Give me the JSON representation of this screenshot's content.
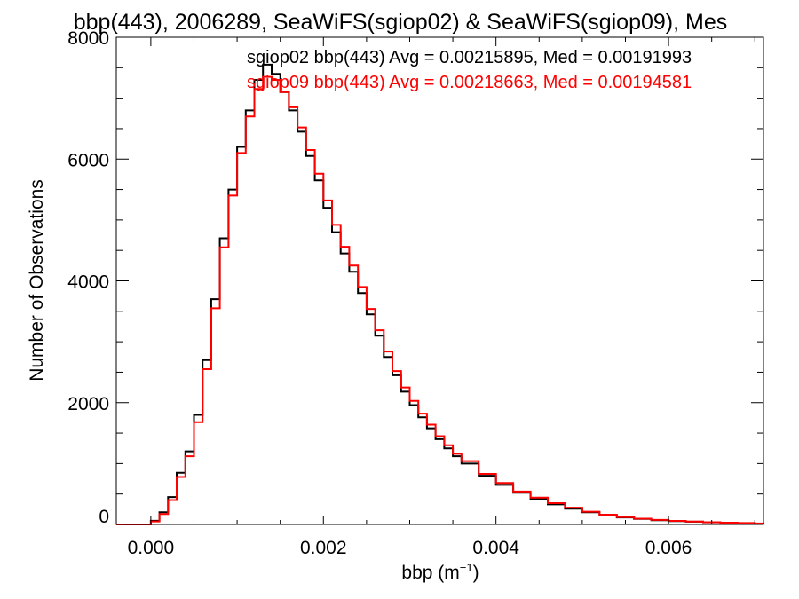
{
  "chart_data": {
    "type": "line",
    "title": "bbp(443), 2006289, SeaWiFS(sgiop02) & SeaWiFS(sgiop09), Mes",
    "xlabel": "bbp (m",
    "xlabel_sup": "−1",
    "xlabel_close": ")",
    "ylabel": "Number of Observations",
    "xlim": [
      -0.0004,
      0.0071
    ],
    "ylim": [
      0,
      8000
    ],
    "x_ticks": [
      0.0,
      0.002,
      0.004,
      0.006
    ],
    "x_tick_labels": [
      "0.000",
      "0.002",
      "0.004",
      "0.006"
    ],
    "y_ticks": [
      0,
      2000,
      4000,
      6000,
      8000
    ],
    "y_tick_labels": [
      "0",
      "2000",
      "4000",
      "6000",
      "8000"
    ],
    "grid": false,
    "x": [
      -0.0004,
      -0.0002,
      0.0,
      0.0001,
      0.0002,
      0.0003,
      0.0004,
      0.0005,
      0.0006,
      0.0007,
      0.0008,
      0.0009,
      0.001,
      0.0011,
      0.0012,
      0.0013,
      0.0014,
      0.0015,
      0.0016,
      0.0017,
      0.0018,
      0.0019,
      0.002,
      0.0021,
      0.0022,
      0.0023,
      0.0024,
      0.0025,
      0.0026,
      0.0027,
      0.0028,
      0.0029,
      0.003,
      0.0031,
      0.0032,
      0.0033,
      0.0034,
      0.0035,
      0.0036,
      0.0038,
      0.004,
      0.0042,
      0.0044,
      0.0046,
      0.0048,
      0.005,
      0.0052,
      0.0054,
      0.0056,
      0.0058,
      0.006,
      0.0062,
      0.0064,
      0.0066,
      0.0068,
      0.007,
      0.0071
    ],
    "series": [
      {
        "name": "sgiop02 bbp(443) Avg = 0.00215895, Med = 0.00191993",
        "color": "#000000",
        "values": [
          0,
          0,
          60,
          200,
          450,
          850,
          1200,
          1800,
          2700,
          3700,
          4700,
          5500,
          6200,
          6800,
          7300,
          7550,
          7400,
          7100,
          6800,
          6450,
          6050,
          5650,
          5200,
          4800,
          4450,
          4150,
          3800,
          3450,
          3100,
          2750,
          2450,
          2180,
          1960,
          1760,
          1580,
          1400,
          1250,
          1120,
          1000,
          800,
          650,
          520,
          420,
          330,
          260,
          200,
          150,
          115,
          90,
          70,
          55,
          45,
          35,
          28,
          22,
          15,
          12
        ]
      },
      {
        "name": "sgiop09 bbp(443) Avg = 0.00218663, Med = 0.00194581",
        "color": "#ff0000",
        "values": [
          0,
          0,
          50,
          170,
          400,
          780,
          1120,
          1680,
          2550,
          3550,
          4550,
          5400,
          6100,
          6700,
          7150,
          7350,
          7300,
          7100,
          6850,
          6520,
          6150,
          5760,
          5320,
          4920,
          4560,
          4250,
          3900,
          3540,
          3190,
          2840,
          2520,
          2250,
          2030,
          1820,
          1640,
          1450,
          1300,
          1160,
          1040,
          830,
          680,
          540,
          440,
          350,
          275,
          210,
          160,
          120,
          95,
          75,
          58,
          47,
          37,
          29,
          23,
          16,
          12
        ]
      }
    ]
  }
}
